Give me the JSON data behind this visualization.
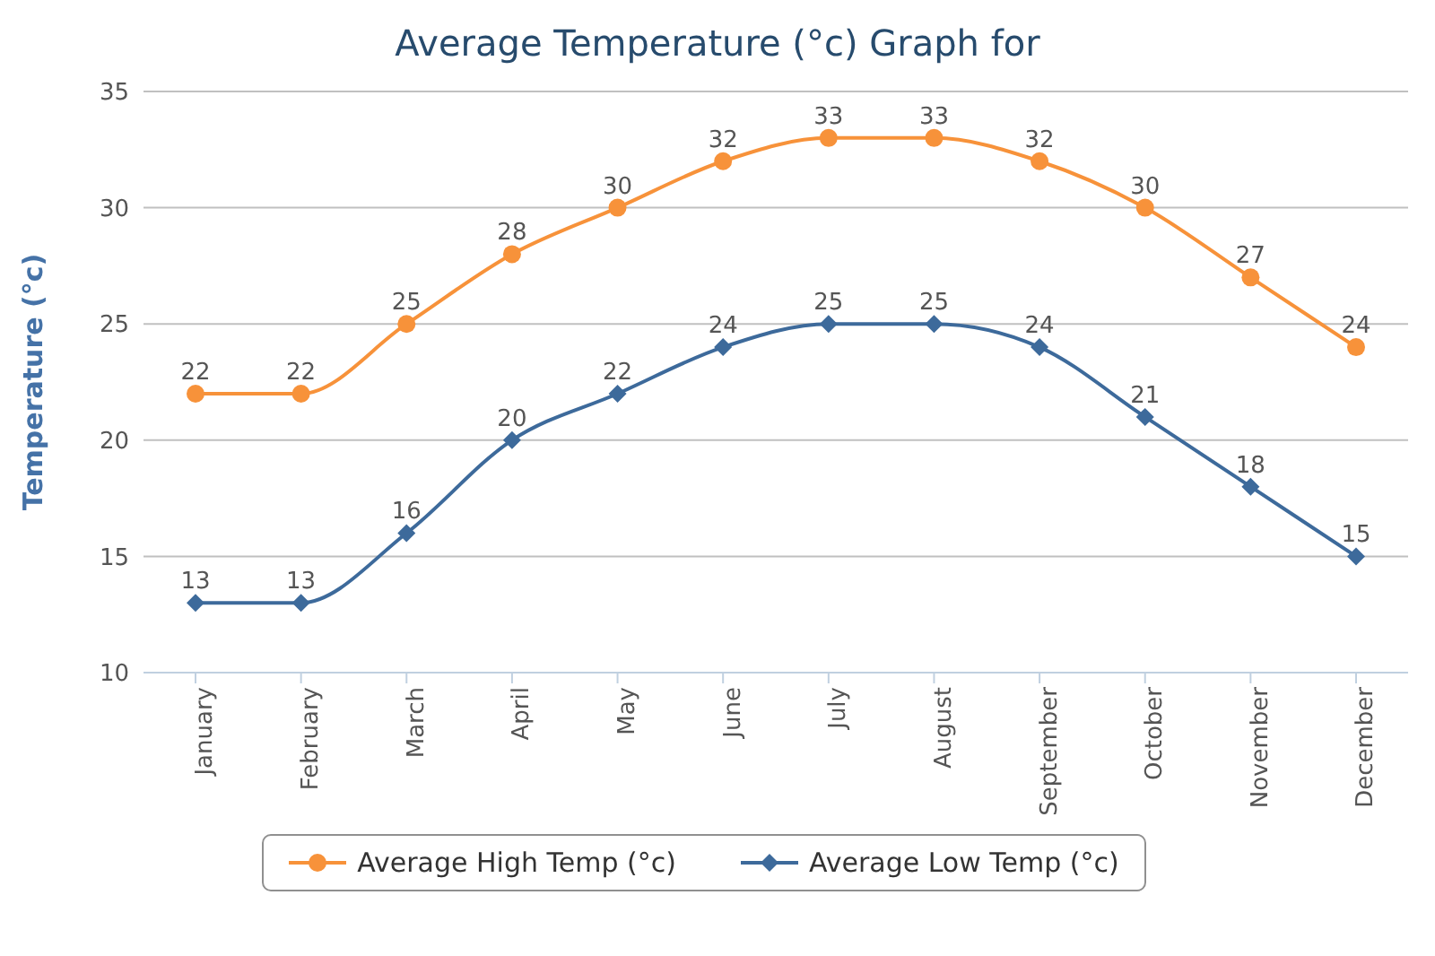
{
  "chart_data": {
    "type": "line",
    "title": "Average Temperature (°c) Graph for",
    "ylabel": "Temperature (°c)",
    "categories": [
      "January",
      "February",
      "March",
      "April",
      "May",
      "June",
      "July",
      "August",
      "September",
      "October",
      "November",
      "December"
    ],
    "series": [
      {
        "name": "Average High Temp (°c)",
        "color": "#f7923a",
        "marker": "circle",
        "values": [
          22,
          22,
          25,
          28,
          30,
          32,
          33,
          33,
          32,
          30,
          27,
          24
        ]
      },
      {
        "name": "Average Low Temp (°c)",
        "color": "#3d6a9b",
        "marker": "diamond",
        "values": [
          13,
          13,
          16,
          20,
          22,
          24,
          25,
          25,
          24,
          21,
          18,
          15
        ]
      }
    ],
    "ylim": [
      10,
      35
    ],
    "yticks": [
      10,
      15,
      20,
      25,
      30,
      35
    ],
    "grid": "y",
    "legend": "bottom",
    "data_labels": true,
    "line_style": "solid"
  }
}
